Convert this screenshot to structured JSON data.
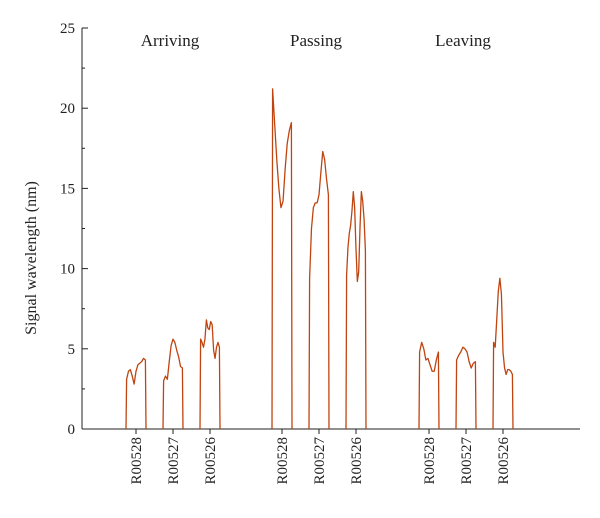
{
  "chart_data": {
    "type": "line",
    "ylabel": "Signal wavelength (nm)",
    "ylim": [
      0,
      25
    ],
    "y_ticks": [
      0,
      5,
      10,
      15,
      20,
      25
    ],
    "line_color": "#c0440f",
    "groups": [
      {
        "name": "Arriving",
        "sensors": [
          {
            "label": "R00528",
            "profile": [
              3.1,
              3.6,
              3.7,
              3.3,
              2.8,
              3.6,
              4.0,
              4.1,
              4.2,
              4.4,
              4.3
            ]
          },
          {
            "label": "R00527",
            "profile": [
              3.0,
              3.3,
              3.1,
              4.2,
              5.2,
              5.6,
              5.4,
              4.9,
              4.5,
              3.9,
              3.8
            ]
          },
          {
            "label": "R00526",
            "profile": [
              5.6,
              5.4,
              5.1,
              5.6,
              6.8,
              6.3,
              6.2,
              6.7,
              6.5,
              4.9,
              4.4,
              5.1,
              5.4,
              5.1
            ]
          }
        ]
      },
      {
        "name": "Passing",
        "sensors": [
          {
            "label": "R00528",
            "profile": [
              21.2,
              19.0,
              16.8,
              15.0,
              13.8,
              14.2,
              16.2,
              17.8,
              18.6,
              19.1
            ]
          },
          {
            "label": "R00527",
            "profile": [
              9.4,
              12.5,
              13.8,
              14.1,
              14.1,
              14.6,
              16.0,
              17.3,
              16.8,
              15.6,
              14.6
            ]
          },
          {
            "label": "R00526",
            "profile": [
              9.6,
              11.3,
              12.2,
              12.7,
              13.6,
              14.8,
              13.8,
              11.2,
              9.2,
              9.8,
              12.6,
              14.8,
              14.2,
              13.1,
              11.1
            ]
          }
        ]
      },
      {
        "name": "Leaving",
        "sensors": [
          {
            "label": "R00528",
            "profile": [
              4.8,
              5.4,
              5.0,
              4.3,
              4.4,
              4.0,
              3.6,
              3.6,
              4.3,
              4.8
            ]
          },
          {
            "label": "R00527",
            "profile": [
              4.3,
              4.6,
              4.8,
              5.1,
              5.0,
              4.8,
              4.2,
              3.8,
              4.1,
              4.2
            ]
          },
          {
            "label": "R00526",
            "profile": [
              5.4,
              5.1,
              6.8,
              8.6,
              9.4,
              8.4,
              4.8,
              3.8,
              3.4,
              3.7,
              3.7,
              3.6,
              3.4
            ]
          }
        ]
      }
    ]
  }
}
